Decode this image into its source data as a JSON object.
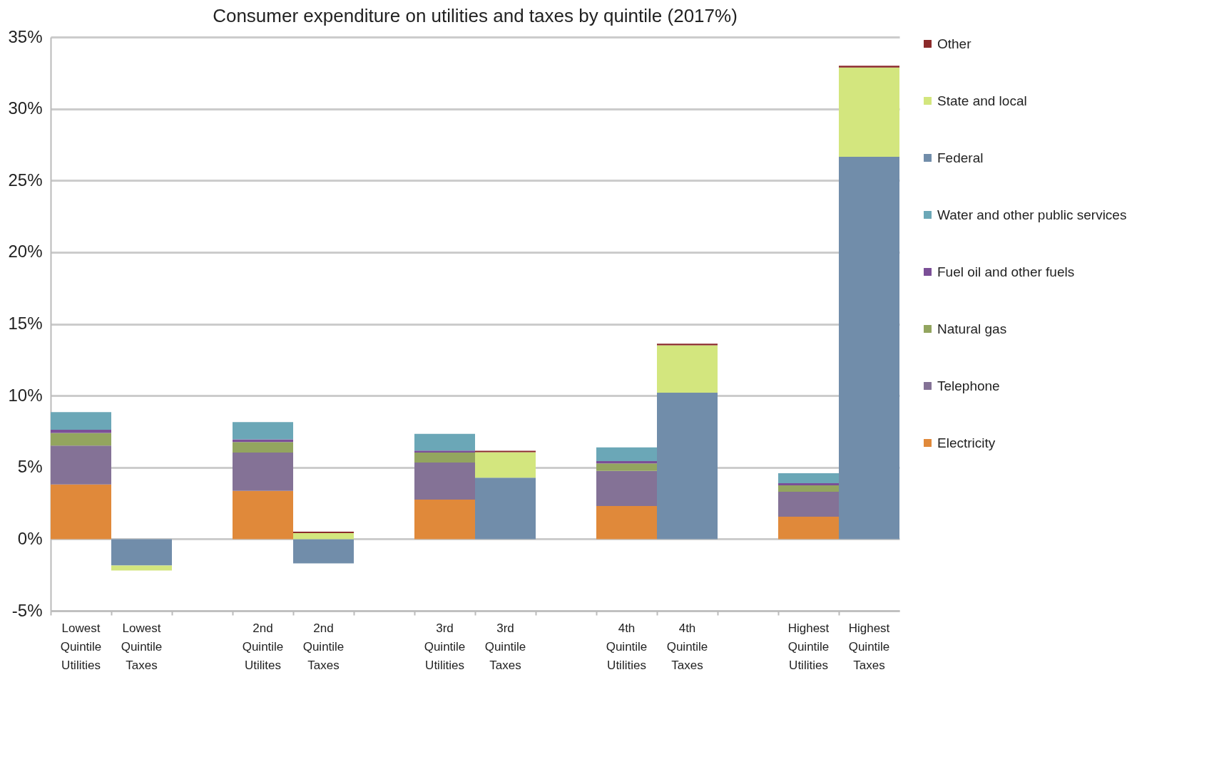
{
  "chart_data": {
    "type": "bar",
    "title": "Consumer expenditure on utilities and taxes by quintile (2017%)",
    "stacked": true,
    "legend": "right",
    "grid": "y",
    "categories": [
      "Lowest Quintile Utilities",
      "Lowest Quintile Taxes",
      null,
      "2nd Quintile Utilites",
      "2nd Quintile Taxes",
      null,
      "3rd Quintile Utilities",
      "3rd Quintile Taxes",
      null,
      "4th Quintile Utilities",
      "4th Quintile Taxes",
      null,
      "Highest Quintile Utilities",
      "Highest Quintile Taxes"
    ],
    "ylim": [
      -5,
      35
    ],
    "yticks": [
      {
        "value": -5,
        "label": "-5%"
      },
      {
        "value": 0,
        "label": "0%"
      },
      {
        "value": 5,
        "label": "5%"
      },
      {
        "value": 10,
        "label": "10%"
      },
      {
        "value": 15,
        "label": "15%"
      },
      {
        "value": 20,
        "label": "20%"
      },
      {
        "value": 25,
        "label": "25%"
      },
      {
        "value": 30,
        "label": "30%"
      },
      {
        "value": 35,
        "label": "35%"
      }
    ],
    "series": [
      {
        "name": "Electricity",
        "color": "#e0893a",
        "values": [
          3.81,
          null,
          null,
          3.36,
          null,
          null,
          2.75,
          null,
          null,
          2.3,
          null,
          null,
          1.56,
          null
        ]
      },
      {
        "name": "Telephone",
        "color": "#847296",
        "values": [
          2.7,
          null,
          null,
          2.67,
          null,
          null,
          2.59,
          null,
          null,
          2.45,
          null,
          null,
          1.74,
          null
        ]
      },
      {
        "name": "Natural gas",
        "color": "#93a55f",
        "values": [
          0.89,
          null,
          null,
          0.73,
          null,
          null,
          0.69,
          null,
          null,
          0.52,
          null,
          null,
          0.45,
          null
        ]
      },
      {
        "name": "Fuel oil and other fuels",
        "color": "#7b4f97",
        "values": [
          0.22,
          null,
          null,
          0.19,
          null,
          null,
          0.14,
          null,
          null,
          0.17,
          null,
          null,
          0.14,
          null
        ]
      },
      {
        "name": "Water and other public services",
        "color": "#6ba7b7",
        "values": [
          1.23,
          null,
          null,
          1.21,
          null,
          null,
          1.16,
          null,
          null,
          0.95,
          null,
          null,
          0.7,
          null
        ]
      },
      {
        "name": "Federal",
        "color": "#718daa",
        "values": [
          null,
          -1.84,
          null,
          null,
          -1.7,
          null,
          null,
          4.28,
          null,
          null,
          10.21,
          null,
          null,
          26.65
        ]
      },
      {
        "name": "State and local",
        "color": "#d3e67e",
        "values": [
          null,
          -0.35,
          null,
          null,
          0.41,
          null,
          null,
          1.77,
          null,
          null,
          3.3,
          null,
          null,
          6.22
        ]
      },
      {
        "name": "Other",
        "color": "#8b2a2a",
        "values": [
          null,
          null,
          null,
          null,
          0.11,
          null,
          null,
          0.1,
          null,
          null,
          0.11,
          null,
          null,
          0.13
        ]
      }
    ]
  }
}
